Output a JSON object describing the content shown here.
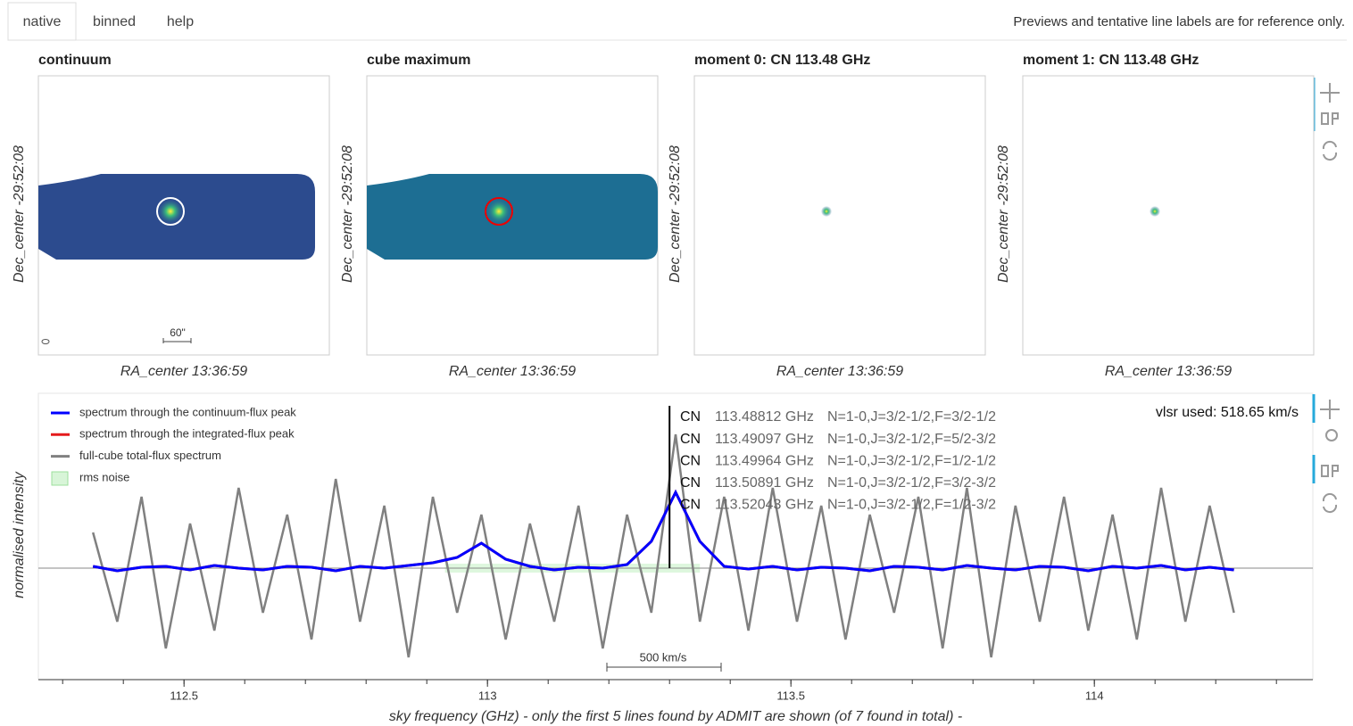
{
  "tabs": [
    "native",
    "binned",
    "help"
  ],
  "note": "Previews and tentative line labels are for reference only.",
  "panels": [
    {
      "title": "continuum",
      "ylabel": "Dec_center -29:52:08",
      "xlabel": "RA_center 13:36:59",
      "scalebar": "60\""
    },
    {
      "title": "cube maximum",
      "ylabel": "Dec_center -29:52:08",
      "xlabel": "RA_center 13:36:59"
    },
    {
      "title": "moment 0: CN 113.48 GHz",
      "ylabel": "Dec_center -29:52:08",
      "xlabel": "RA_center 13:36:59"
    },
    {
      "title": "moment 1: CN 113.48 GHz",
      "ylabel": "Dec_center -29:52:08",
      "xlabel": "RA_center 13:36:59"
    }
  ],
  "chart_data": {
    "type": "line",
    "ylabel": "normalised intensity",
    "xlabel": "sky frequency (GHz) - only the first 5 lines found by ADMIT are shown (of 7 found in total) -",
    "vlsr": "vlsr used: 518.65 km/s",
    "scalebar": "500 km/s",
    "rms_label": "rms noise",
    "xlim": [
      112.26,
      114.36
    ],
    "ylim": [
      -1.25,
      1.96
    ],
    "xticks": [
      112.5,
      113,
      113.5,
      114
    ],
    "xminor_ticks": [
      112.3,
      112.4,
      112.5,
      112.6,
      112.7,
      112.8,
      112.9,
      113,
      113.1,
      113.2,
      113.3,
      113.4,
      113.5,
      113.6,
      113.7,
      113.8,
      113.9,
      114,
      114.1,
      114.2,
      114.3
    ],
    "x": [
      112.35,
      112.39,
      112.43,
      112.47,
      112.51,
      112.55,
      112.59,
      112.63,
      112.67,
      112.71,
      112.75,
      112.79,
      112.83,
      112.87,
      112.91,
      112.95,
      112.99,
      113.03,
      113.07,
      113.11,
      113.15,
      113.19,
      113.23,
      113.27,
      113.31,
      113.35,
      113.39,
      113.43,
      113.47,
      113.51,
      113.55,
      113.59,
      113.63,
      113.67,
      113.71,
      113.75,
      113.79,
      113.83,
      113.87,
      113.91,
      113.95,
      113.99,
      114.03,
      114.07,
      114.11,
      114.15,
      114.19,
      114.23
    ],
    "series": [
      {
        "name": "full-cube total-flux spectrum",
        "color": "#808080",
        "values": [
          0.4,
          -0.6,
          0.8,
          -0.9,
          0.5,
          -0.7,
          0.9,
          -0.5,
          0.6,
          -0.8,
          1.0,
          -0.6,
          0.7,
          -1.0,
          0.8,
          -0.5,
          0.6,
          -0.8,
          0.5,
          -0.6,
          0.7,
          -0.9,
          0.6,
          -0.5,
          1.5,
          -0.6,
          0.8,
          -0.7,
          0.9,
          -0.6,
          0.7,
          -0.8,
          0.6,
          -0.5,
          0.8,
          -0.9,
          0.9,
          -1.0,
          0.7,
          -0.6,
          0.8,
          -0.7,
          0.6,
          -0.8,
          0.9,
          -0.6,
          0.7,
          -0.5
        ]
      },
      {
        "name": "spectrum through the integrated-flux peak",
        "color": "#e41a1c",
        "values": [
          0.02,
          -0.03,
          0.01,
          0.02,
          -0.02,
          0.03,
          0.0,
          -0.02,
          0.02,
          0.01,
          -0.03,
          0.02,
          0.0,
          0.03,
          0.06,
          0.12,
          0.28,
          0.1,
          0.02,
          -0.02,
          0.01,
          0.0,
          0.04,
          0.3,
          0.85,
          0.3,
          0.02,
          -0.01,
          0.02,
          -0.02,
          0.01,
          0.0,
          -0.03,
          0.02,
          0.01,
          -0.02,
          0.03,
          0.0,
          -0.02,
          0.02,
          0.01,
          -0.03,
          0.02,
          0.0,
          0.03,
          -0.02,
          0.01,
          -0.02
        ]
      },
      {
        "name": "spectrum through the continuum-flux peak",
        "color": "#0000ff",
        "values": [
          0.02,
          -0.03,
          0.01,
          0.02,
          -0.02,
          0.03,
          0.0,
          -0.02,
          0.02,
          0.01,
          -0.03,
          0.02,
          0.0,
          0.03,
          0.06,
          0.12,
          0.28,
          0.1,
          0.02,
          -0.02,
          0.01,
          0.0,
          0.04,
          0.3,
          0.85,
          0.3,
          0.02,
          -0.01,
          0.02,
          -0.02,
          0.01,
          0.0,
          -0.03,
          0.02,
          0.01,
          -0.02,
          0.03,
          0.0,
          -0.02,
          0.02,
          0.01,
          -0.03,
          0.02,
          0.0,
          0.03,
          -0.02,
          0.01,
          -0.02
        ]
      }
    ],
    "line_position": 113.3,
    "lines": [
      {
        "species": "CN",
        "freq": "113.48812 GHz",
        "qn": "N=1-0,J=3/2-1/2,F=3/2-1/2"
      },
      {
        "species": "CN",
        "freq": "113.49097 GHz",
        "qn": "N=1-0,J=3/2-1/2,F=5/2-3/2"
      },
      {
        "species": "CN",
        "freq": "113.49964 GHz",
        "qn": "N=1-0,J=3/2-1/2,F=1/2-1/2"
      },
      {
        "species": "CN",
        "freq": "113.50891 GHz",
        "qn": "N=1-0,J=3/2-1/2,F=3/2-3/2"
      },
      {
        "species": "CN",
        "freq": "113.52043 GHz",
        "qn": "N=1-0,J=3/2-1/2,F=1/2-3/2"
      }
    ]
  }
}
